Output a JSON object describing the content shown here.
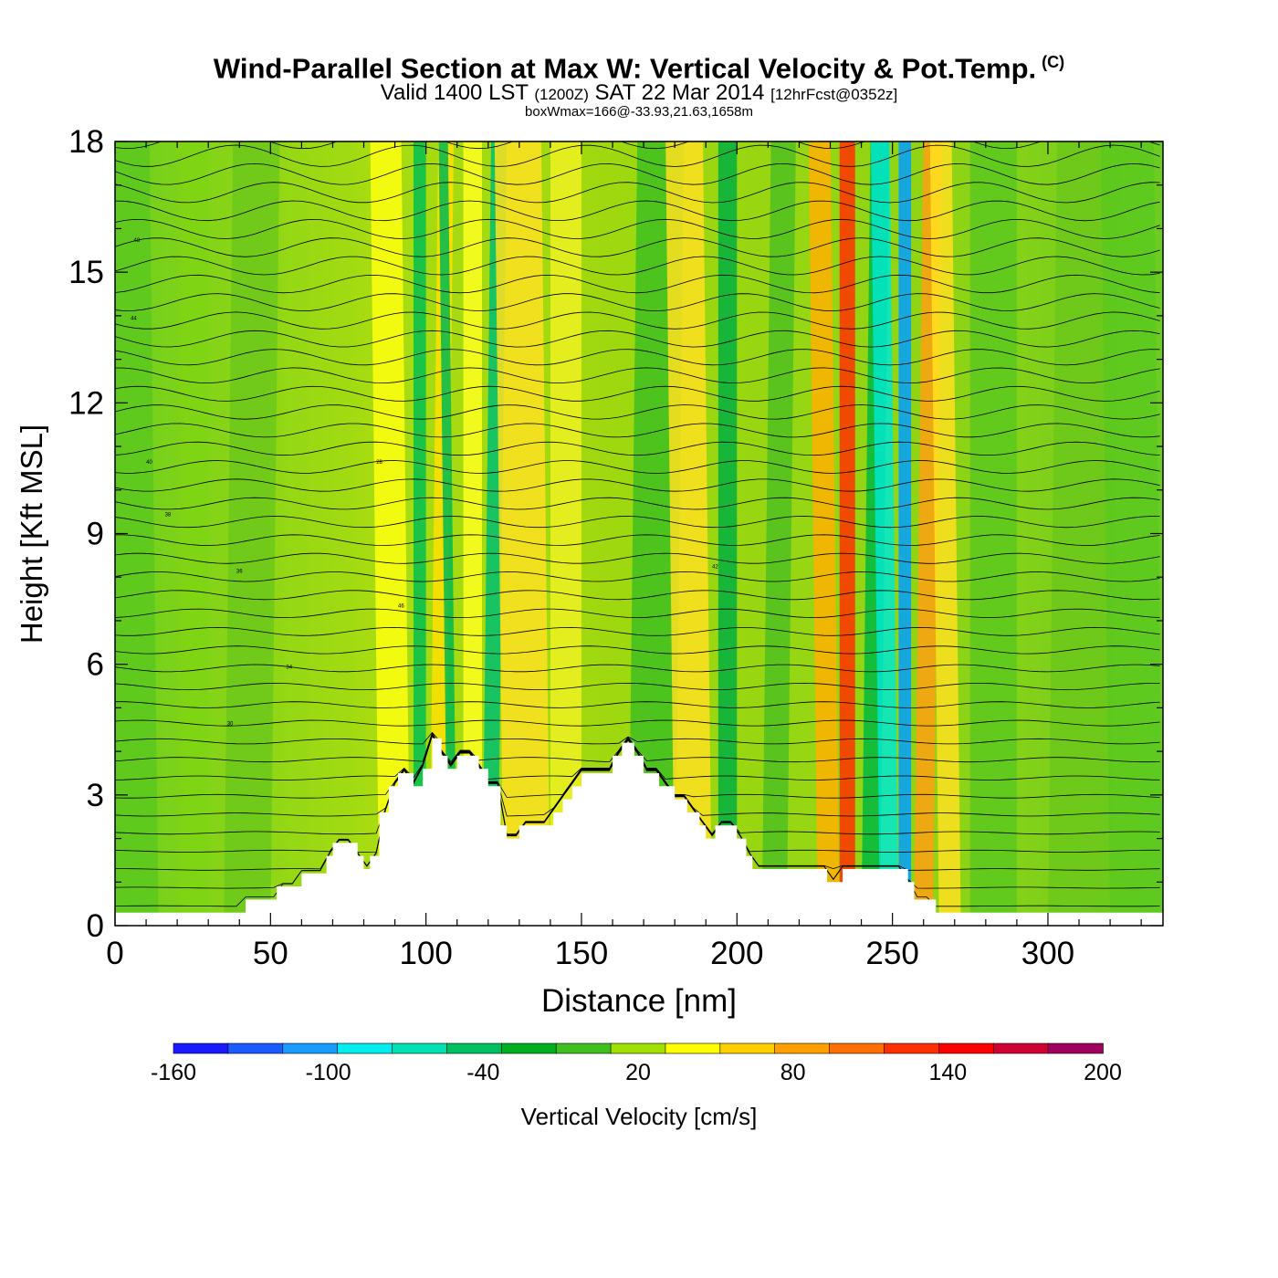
{
  "title": {
    "main": "Wind-Parallel Section at Max W: Vertical Velocity & Pot.Temp.",
    "copyright": "(C)",
    "valid_prefix": "Valid 1400 LST",
    "valid_z": "(1200Z)",
    "valid_date": "SAT 22 Mar 2014",
    "forecast": "[12hrFcst@0352z]",
    "boxinfo": "boxWmax=166@-33.93,21.63,1658m"
  },
  "chart_data": {
    "type": "heatmap",
    "xlabel": "Distance [nm]",
    "ylabel": "Height [Kft MSL]",
    "xlim": [
      0,
      337
    ],
    "ylim": [
      0,
      18
    ],
    "x_ticks": [
      0,
      50,
      100,
      150,
      200,
      250,
      300
    ],
    "x_tick_labels": [
      "0",
      "50",
      "100",
      "150",
      "200",
      "250",
      "300"
    ],
    "y_ticks": [
      0,
      3,
      6,
      9,
      12,
      15,
      18
    ],
    "y_tick_labels": [
      "0",
      "3",
      "6",
      "9",
      "12",
      "15",
      "18"
    ],
    "terrain": [
      [
        0,
        0.3
      ],
      [
        42,
        0.3
      ],
      [
        42,
        0.6
      ],
      [
        52,
        0.6
      ],
      [
        52,
        0.9
      ],
      [
        60,
        0.9
      ],
      [
        60,
        1.2
      ],
      [
        68,
        1.2
      ],
      [
        68,
        1.6
      ],
      [
        70,
        1.6
      ],
      [
        70,
        1.9
      ],
      [
        78,
        1.9
      ],
      [
        78,
        1.6
      ],
      [
        80,
        1.6
      ],
      [
        80,
        1.3
      ],
      [
        82,
        1.3
      ],
      [
        82,
        1.6
      ],
      [
        85,
        1.6
      ],
      [
        85,
        2.6
      ],
      [
        88,
        2.6
      ],
      [
        88,
        3.2
      ],
      [
        91,
        3.2
      ],
      [
        91,
        3.5
      ],
      [
        96,
        3.5
      ],
      [
        96,
        3.2
      ],
      [
        99,
        3.2
      ],
      [
        99,
        3.6
      ],
      [
        102,
        3.6
      ],
      [
        102,
        4.3
      ],
      [
        105,
        4.3
      ],
      [
        105,
        3.9
      ],
      [
        107,
        3.9
      ],
      [
        107,
        3.6
      ],
      [
        110,
        3.6
      ],
      [
        110,
        3.9
      ],
      [
        117,
        3.9
      ],
      [
        117,
        3.6
      ],
      [
        120,
        3.6
      ],
      [
        120,
        3.2
      ],
      [
        124,
        3.2
      ],
      [
        124,
        2.3
      ],
      [
        126,
        2.3
      ],
      [
        126,
        2.0
      ],
      [
        130,
        2.0
      ],
      [
        130,
        2.3
      ],
      [
        141,
        2.3
      ],
      [
        141,
        2.6
      ],
      [
        144,
        2.6
      ],
      [
        144,
        2.9
      ],
      [
        147,
        2.9
      ],
      [
        147,
        3.2
      ],
      [
        150,
        3.2
      ],
      [
        150,
        3.5
      ],
      [
        160,
        3.5
      ],
      [
        160,
        3.9
      ],
      [
        163,
        3.9
      ],
      [
        163,
        4.2
      ],
      [
        167,
        4.2
      ],
      [
        167,
        3.9
      ],
      [
        170,
        3.9
      ],
      [
        170,
        3.5
      ],
      [
        175,
        3.5
      ],
      [
        175,
        3.2
      ],
      [
        180,
        3.2
      ],
      [
        180,
        2.9
      ],
      [
        184,
        2.9
      ],
      [
        184,
        2.6
      ],
      [
        188,
        2.6
      ],
      [
        188,
        2.3
      ],
      [
        190,
        2.3
      ],
      [
        190,
        2.0
      ],
      [
        193,
        2.0
      ],
      [
        193,
        2.3
      ],
      [
        200,
        2.3
      ],
      [
        200,
        2.0
      ],
      [
        203,
        2.0
      ],
      [
        203,
        1.6
      ],
      [
        205,
        1.6
      ],
      [
        205,
        1.3
      ],
      [
        229,
        1.3
      ],
      [
        229,
        1.0
      ],
      [
        234,
        1.0
      ],
      [
        234,
        1.3
      ],
      [
        255,
        1.3
      ],
      [
        255,
        1.0
      ],
      [
        257,
        1.0
      ],
      [
        257,
        0.6
      ],
      [
        264,
        0.6
      ],
      [
        264,
        0.3
      ],
      [
        337,
        0.3
      ]
    ],
    "legend": {
      "title": "Vertical Velocity [cm/s]",
      "colors": [
        "#1a1aff",
        "#1a5bff",
        "#1a9bff",
        "#00eeee",
        "#00e0b0",
        "#00c060",
        "#00b020",
        "#40c020",
        "#a0e000",
        "#ffff00",
        "#ffd000",
        "#ffa000",
        "#ff7000",
        "#ff3000",
        "#ff0000",
        "#d00030",
        "#a00060"
      ],
      "tick_labels": [
        "-160",
        "-100",
        "-40",
        "20",
        "80",
        "140",
        "200"
      ]
    },
    "contour_labels": [
      "48",
      "44",
      "40",
      "38",
      "36",
      "34",
      "30",
      "28",
      "46",
      "42"
    ]
  }
}
